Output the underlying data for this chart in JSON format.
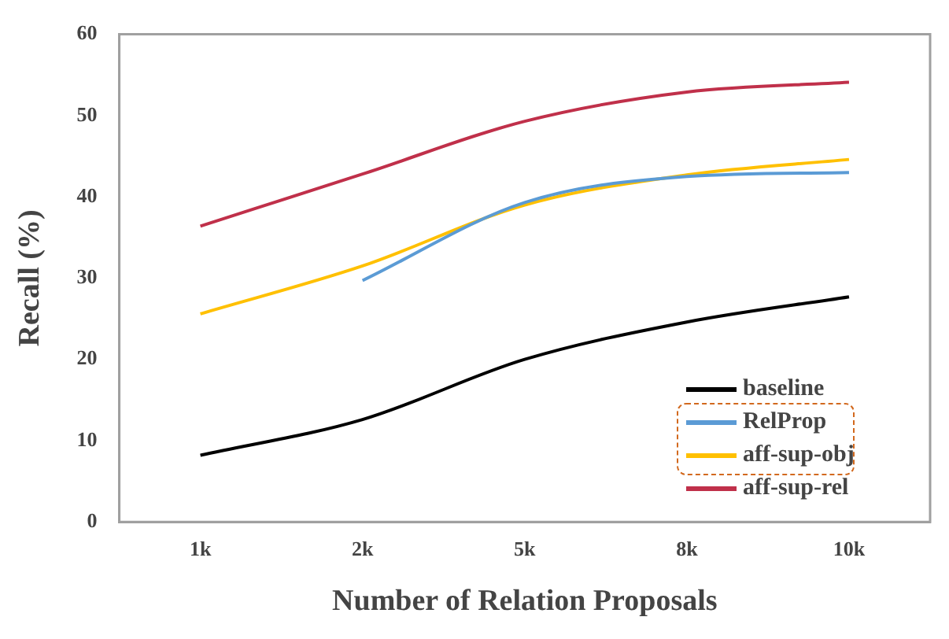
{
  "chart_data": {
    "type": "line",
    "xlabel": "Number of Relation Proposals",
    "ylabel": "Recall (%)",
    "categories": [
      "1k",
      "2k",
      "5k",
      "8k",
      "10k"
    ],
    "series": [
      {
        "name": "baseline",
        "color": "#000000",
        "values": [
          8.2,
          12.6,
          20.0,
          24.6,
          27.7
        ]
      },
      {
        "name": "RelProp",
        "color": "#5b9bd5",
        "values": [
          null,
          29.7,
          39.3,
          42.5,
          43.0
        ]
      },
      {
        "name": "aff-sup-obj",
        "color": "#ffc000",
        "values": [
          25.6,
          31.5,
          39.0,
          42.7,
          44.6
        ]
      },
      {
        "name": "aff-sup-rel",
        "color": "#c0304a",
        "values": [
          36.4,
          42.8,
          49.3,
          52.9,
          54.1
        ]
      }
    ],
    "ylim": [
      0,
      60
    ],
    "yticks": [
      0,
      10,
      20,
      30,
      40,
      50,
      60
    ],
    "grid": false,
    "legend": "bottom right",
    "marker": "none",
    "line_style": "solid"
  }
}
